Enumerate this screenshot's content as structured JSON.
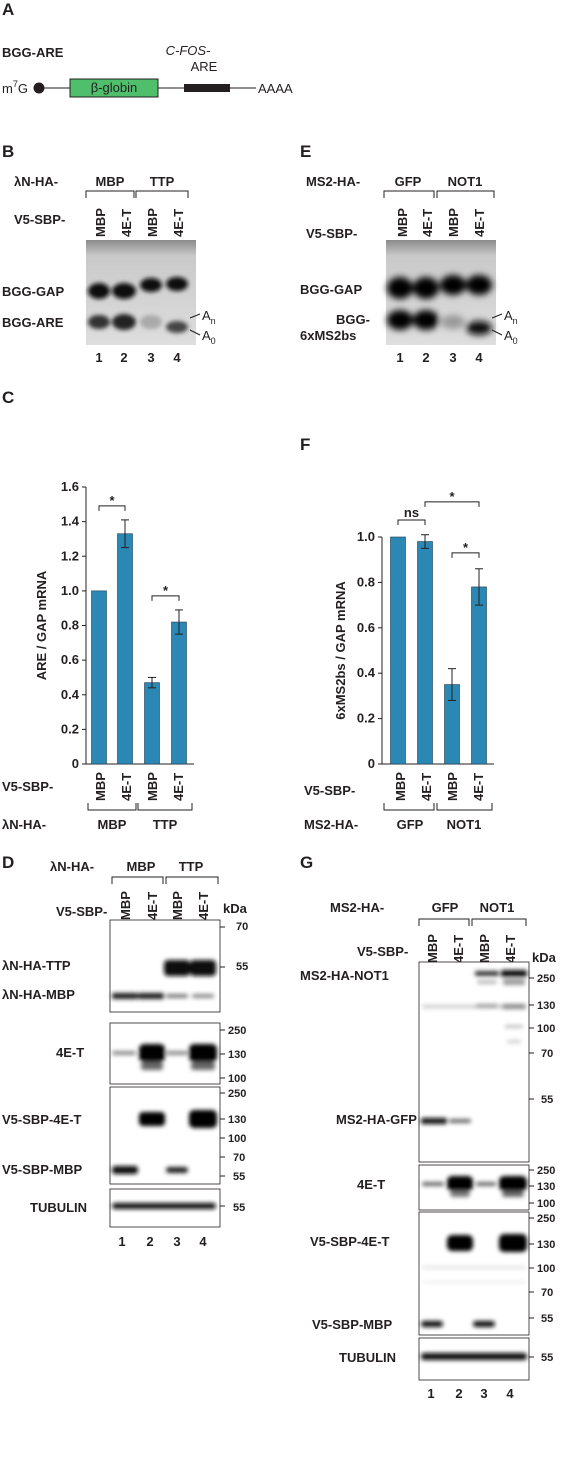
{
  "panels": {
    "A": "A",
    "B": "B",
    "C": "C",
    "D": "D",
    "E": "E",
    "F": "F",
    "G": "G"
  },
  "schematic": {
    "construct": "BGG-ARE",
    "cap": "m",
    "cap_sup": "7",
    "cap_base": "G",
    "globin": "β-globin",
    "cfos": "C-FOS-",
    "are": "ARE",
    "polya": "AAAA"
  },
  "panel_B": {
    "header_label": "λN-HA-",
    "groups": [
      "MBP",
      "TTP"
    ],
    "row_label": "V5-SBP-",
    "lanes": [
      "MBP",
      "4E-T",
      "MBP",
      "4E-T"
    ],
    "band_labels": [
      "BGG-GAP",
      "BGG-ARE"
    ],
    "an": "A",
    "an_sub": "n",
    "a0": "A",
    "a0_sub": "0",
    "lane_numbers": [
      "1",
      "2",
      "3",
      "4"
    ]
  },
  "panel_E": {
    "header_label": "MS2-HA-",
    "groups": [
      "GFP",
      "NOT1"
    ],
    "row_label": "V5-SBP-",
    "lanes": [
      "MBP",
      "4E-T",
      "MBP",
      "4E-T"
    ],
    "band_labels": [
      "BGG-GAP",
      "BGG-",
      "6xMS2bs"
    ],
    "an": "A",
    "an_sub": "n",
    "a0": "A",
    "a0_sub": "0",
    "lane_numbers": [
      "1",
      "2",
      "3",
      "4"
    ]
  },
  "panel_C_extra": {
    "row_label": "V5-SBP-",
    "group_label": "λN-HA-",
    "groups": [
      "MBP",
      "TTP"
    ],
    "lanes": [
      "MBP",
      "4E-T",
      "MBP",
      "4E-T"
    ]
  },
  "panel_F_extra": {
    "row_label": "V5-SBP-",
    "group_label": "MS2-HA-",
    "groups": [
      "GFP",
      "NOT1"
    ],
    "lanes": [
      "MBP",
      "4E-T",
      "MBP",
      "4E-T"
    ]
  },
  "chart_data": [
    {
      "type": "bar",
      "panel": "C",
      "categories": [
        "MBP",
        "4E-T",
        "MBP",
        "4E-T"
      ],
      "values": [
        1.0,
        1.33,
        0.47,
        0.82
      ],
      "errors": [
        0,
        0.08,
        0.03,
        0.07
      ],
      "ylabel": "ARE / GAP mRNA",
      "ylim": [
        0,
        1.6
      ],
      "yticks": [
        "0",
        "0.2",
        "0.4",
        "0.6",
        "0.8",
        "1.0",
        "1.2",
        "1.4",
        "1.6"
      ],
      "significance": [
        {
          "pair": [
            0,
            1
          ],
          "label": "*"
        },
        {
          "pair": [
            2,
            3
          ],
          "label": "*"
        }
      ],
      "color": "#2b88b4"
    },
    {
      "type": "bar",
      "panel": "F",
      "categories": [
        "MBP",
        "4E-T",
        "MBP",
        "4E-T"
      ],
      "values": [
        1.0,
        0.98,
        0.35,
        0.78
      ],
      "errors": [
        0,
        0.03,
        0.07,
        0.08
      ],
      "ylabel": "6xMS2bs / GAP mRNA",
      "ylim": [
        0,
        1.0
      ],
      "yticks": [
        "0",
        "0.2",
        "0.4",
        "0.6",
        "0.8",
        "1.0"
      ],
      "significance": [
        {
          "pair": [
            0,
            1
          ],
          "label": "ns"
        },
        {
          "pair": [
            1,
            3
          ],
          "label": "*"
        },
        {
          "pair": [
            2,
            3
          ],
          "label": "*"
        }
      ],
      "color": "#2b88b4"
    }
  ],
  "panel_D": {
    "header_label": "λN-HA-",
    "groups": [
      "MBP",
      "TTP"
    ],
    "row_label": "V5-SBP-",
    "lanes": [
      "MBP",
      "4E-T",
      "MBP",
      "4E-T"
    ],
    "kda": "kDa",
    "blots": [
      {
        "labels": [
          "λN-HA-TTP",
          "λN-HA-MBP"
        ],
        "markers": [
          "70",
          "55"
        ]
      },
      {
        "labels": [
          "4E-T"
        ],
        "markers": [
          "250",
          "130",
          "100"
        ]
      },
      {
        "labels": [
          "V5-SBP-4E-T",
          "V5-SBP-MBP"
        ],
        "markers": [
          "250",
          "130",
          "100",
          "70",
          "55"
        ]
      },
      {
        "labels": [
          "TUBULIN"
        ],
        "markers": [
          "55"
        ]
      }
    ],
    "lane_numbers": [
      "1",
      "2",
      "3",
      "4"
    ]
  },
  "panel_G": {
    "header_label": "MS2-HA-",
    "groups": [
      "GFP",
      "NOT1"
    ],
    "row_label": "V5-SBP-",
    "lanes": [
      "MBP",
      "4E-T",
      "MBP",
      "4E-T"
    ],
    "kda": "kDa",
    "blots": [
      {
        "labels": [
          "MS2-HA-NOT1",
          "MS2-HA-GFP"
        ],
        "markers": [
          "250",
          "130",
          "100",
          "70",
          "55"
        ]
      },
      {
        "labels": [
          "4E-T"
        ],
        "markers": [
          "250",
          "130",
          "100"
        ]
      },
      {
        "labels": [
          "V5-SBP-4E-T",
          "V5-SBP-MBP"
        ],
        "markers": [
          "250",
          "130",
          "100",
          "70",
          "55"
        ]
      },
      {
        "labels": [
          "TUBULIN"
        ],
        "markers": [
          "55"
        ]
      }
    ],
    "lane_numbers": [
      "1",
      "2",
      "3",
      "4"
    ]
  }
}
